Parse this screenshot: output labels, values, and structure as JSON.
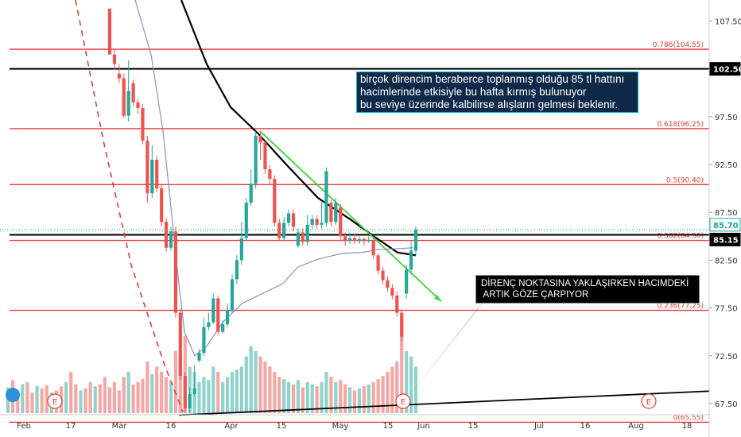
{
  "chart_data": {
    "type": "candlestick",
    "title": "",
    "x_tick_labels": [
      "Feb",
      "17",
      "Mar",
      "16",
      "Apr",
      "15",
      "May",
      "15",
      "Jun",
      "15",
      "Jul",
      "16",
      "Aug",
      "18"
    ],
    "y_tick_labels": [
      "107.50",
      "102.50",
      "97.50",
      "92.50",
      "87.50",
      "82.50",
      "77.50",
      "72.50",
      "67.50"
    ],
    "ylim": [
      66.5,
      109.7
    ],
    "grid": false,
    "price_labels": [
      {
        "text": "102.50",
        "value": 102.5,
        "bg": "#000000",
        "fg": "#ffffff"
      },
      {
        "text": "85.70",
        "value": 85.7,
        "bg": "#ffffff",
        "fg": "#26a69a",
        "border": "#26a69a"
      },
      {
        "text": "85.15",
        "value": 85.15,
        "bg": "#000000",
        "fg": "#ffffff"
      }
    ],
    "horizontal_levels": [
      {
        "label": "0.786(104.55)",
        "value": 104.55,
        "color": "#e53935"
      },
      {
        "label": "",
        "value": 102.5,
        "color": "#000000"
      },
      {
        "label": "0.618(96.25)",
        "value": 96.25,
        "color": "#e53935"
      },
      {
        "label": "0.5(90.40)",
        "value": 90.4,
        "color": "#e53935"
      },
      {
        "label": "0.382(84.56)",
        "value": 84.56,
        "color": "#e53935"
      },
      {
        "label": "",
        "value": 85.15,
        "color": "#000000"
      },
      {
        "label": "0.236(77.25)",
        "value": 77.25,
        "color": "#e53935"
      },
      {
        "label": "0(65.55)",
        "value": 65.55,
        "color": "#e53935"
      }
    ],
    "colors": {
      "up": "#26a69a",
      "down": "#ef5350",
      "up_volume": "#8fd3cc",
      "down_volume": "#f4a7a5",
      "fib": "#e53935",
      "trend": "#3cd43c",
      "ma_fast": "#000000",
      "ma_slow": "#8b8fc8"
    },
    "candles": [
      {
        "o": 108.8,
        "c": 104.0,
        "h": 108.8,
        "l": 104.0
      },
      {
        "o": 104.0,
        "c": 103.0,
        "h": 104.5,
        "l": 102.4
      },
      {
        "o": 102.0,
        "c": 101.5,
        "h": 103.0,
        "l": 101.0
      },
      {
        "o": 101.5,
        "c": 97.6,
        "h": 102.0,
        "l": 97.4
      },
      {
        "o": 97.6,
        "c": 100.2,
        "h": 103.4,
        "l": 97.0
      },
      {
        "o": 101.0,
        "c": 99.0,
        "h": 101.4,
        "l": 98.6
      },
      {
        "o": 99.0,
        "c": 98.4,
        "h": 99.4,
        "l": 97.8
      },
      {
        "o": 98.4,
        "c": 95.0,
        "h": 98.8,
        "l": 94.6
      },
      {
        "o": 95.0,
        "c": 89.5,
        "h": 95.5,
        "l": 88.5
      },
      {
        "o": 89.5,
        "c": 93.0,
        "h": 94.5,
        "l": 89.0
      },
      {
        "o": 93.0,
        "c": 90.0,
        "h": 93.4,
        "l": 89.6
      },
      {
        "o": 90.0,
        "c": 86.5,
        "h": 90.4,
        "l": 86.0
      },
      {
        "o": 86.5,
        "c": 83.8,
        "h": 86.9,
        "l": 83.4
      },
      {
        "o": 83.8,
        "c": 85.5,
        "h": 86.0,
        "l": 83.5
      },
      {
        "o": 85.5,
        "c": 77.0,
        "h": 86.0,
        "l": 76.5
      },
      {
        "o": 77.0,
        "c": 70.4,
        "h": 77.4,
        "l": 70.0
      },
      {
        "o": 70.4,
        "c": 67.0,
        "h": 70.8,
        "l": 66.6
      },
      {
        "o": 67.0,
        "c": 68.5,
        "h": 69.2,
        "l": 66.6
      },
      {
        "o": 68.5,
        "c": 69.1,
        "h": 71.5,
        "l": 68.3
      },
      {
        "o": 72.0,
        "c": 72.8,
        "h": 73.2,
        "l": 71.8
      },
      {
        "o": 72.8,
        "c": 75.5,
        "h": 76.5,
        "l": 72.5
      },
      {
        "o": 75.5,
        "c": 76.0,
        "h": 77.0,
        "l": 75.2
      },
      {
        "o": 76.0,
        "c": 78.5,
        "h": 79.0,
        "l": 75.8
      },
      {
        "o": 78.5,
        "c": 75.0,
        "h": 78.8,
        "l": 74.6
      },
      {
        "o": 75.0,
        "c": 75.8,
        "h": 76.2,
        "l": 74.8
      },
      {
        "o": 75.8,
        "c": 77.3,
        "h": 78.0,
        "l": 75.5
      },
      {
        "o": 77.3,
        "c": 80.5,
        "h": 81.0,
        "l": 77.0
      },
      {
        "o": 80.5,
        "c": 82.5,
        "h": 83.0,
        "l": 80.0
      },
      {
        "o": 82.5,
        "c": 84.8,
        "h": 86.5,
        "l": 82.0
      },
      {
        "o": 84.8,
        "c": 88.5,
        "h": 89.0,
        "l": 84.5
      },
      {
        "o": 88.5,
        "c": 90.5,
        "h": 92.0,
        "l": 88.2
      },
      {
        "o": 90.5,
        "c": 95.5,
        "h": 96.0,
        "l": 90.0
      },
      {
        "o": 95.5,
        "c": 94.8,
        "h": 95.8,
        "l": 93.0
      },
      {
        "o": 94.8,
        "c": 92.0,
        "h": 95.0,
        "l": 91.5
      },
      {
        "o": 92.0,
        "c": 91.0,
        "h": 92.5,
        "l": 90.5
      },
      {
        "o": 91.0,
        "c": 86.4,
        "h": 91.4,
        "l": 86.0
      },
      {
        "o": 86.4,
        "c": 84.8,
        "h": 86.8,
        "l": 84.5
      },
      {
        "o": 84.8,
        "c": 86.4,
        "h": 87.0,
        "l": 84.5
      },
      {
        "o": 86.4,
        "c": 87.4,
        "h": 87.8,
        "l": 86.0
      },
      {
        "o": 87.4,
        "c": 86.0,
        "h": 87.8,
        "l": 85.5
      },
      {
        "o": 84.0,
        "c": 85.4,
        "h": 85.8,
        "l": 83.8
      },
      {
        "o": 85.4,
        "c": 84.4,
        "h": 85.8,
        "l": 84.0
      },
      {
        "o": 84.4,
        "c": 86.2,
        "h": 87.2,
        "l": 84.0
      },
      {
        "o": 86.2,
        "c": 86.8,
        "h": 87.2,
        "l": 85.8
      },
      {
        "o": 86.8,
        "c": 86.2,
        "h": 87.2,
        "l": 85.8
      },
      {
        "o": 86.2,
        "c": 86.4,
        "h": 88.6,
        "l": 85.8
      },
      {
        "o": 86.4,
        "c": 91.8,
        "h": 92.2,
        "l": 86.0
      },
      {
        "o": 88.5,
        "c": 86.5,
        "h": 88.8,
        "l": 86.0
      },
      {
        "o": 86.5,
        "c": 88.5,
        "h": 89.0,
        "l": 86.2
      },
      {
        "o": 88.0,
        "c": 85.0,
        "h": 88.4,
        "l": 84.6
      },
      {
        "o": 85.0,
        "c": 84.5,
        "h": 85.4,
        "l": 84.0
      },
      {
        "o": 84.5,
        "c": 84.8,
        "h": 85.4,
        "l": 84.2
      },
      {
        "o": 84.8,
        "c": 84.5,
        "h": 85.2,
        "l": 84.2
      },
      {
        "o": 84.5,
        "c": 84.7,
        "h": 85.0,
        "l": 84.2
      },
      {
        "o": 84.7,
        "c": 84.5,
        "h": 84.9,
        "l": 84.0
      },
      {
        "o": 84.5,
        "c": 84.6,
        "h": 85.0,
        "l": 84.3
      },
      {
        "o": 84.6,
        "c": 83.0,
        "h": 84.8,
        "l": 82.6
      },
      {
        "o": 83.0,
        "c": 81.4,
        "h": 83.2,
        "l": 81.0
      },
      {
        "o": 81.4,
        "c": 80.4,
        "h": 81.8,
        "l": 80.0
      },
      {
        "o": 80.4,
        "c": 79.6,
        "h": 80.8,
        "l": 79.2
      },
      {
        "o": 79.6,
        "c": 78.8,
        "h": 80.0,
        "l": 78.4
      },
      {
        "o": 78.8,
        "c": 77.0,
        "h": 79.2,
        "l": 76.6
      },
      {
        "o": 77.0,
        "c": 74.5,
        "h": 77.2,
        "l": 74.0
      },
      {
        "o": 79.0,
        "c": 81.5,
        "h": 82.0,
        "l": 78.5
      },
      {
        "o": 81.5,
        "c": 83.5,
        "h": 84.5,
        "l": 81.0
      },
      {
        "o": 83.5,
        "c": 85.7,
        "h": 86.0,
        "l": 83.0
      }
    ],
    "volume_rel": [
      0.25,
      0.3,
      0.22,
      0.35,
      0.4,
      0.28,
      0.3,
      0.33,
      0.5,
      0.38,
      0.45,
      0.4,
      0.35,
      0.3,
      0.6,
      0.55,
      0.75,
      0.45,
      0.4,
      0.3,
      0.35,
      0.32,
      0.45,
      0.4,
      0.3,
      0.35,
      0.4,
      0.42,
      0.45,
      0.55,
      0.65,
      0.6,
      0.55,
      0.5,
      0.45,
      0.4,
      0.35,
      0.33,
      0.3,
      0.28,
      0.32,
      0.25,
      0.3,
      0.28,
      0.26,
      0.3,
      0.4,
      0.35,
      0.3,
      0.32,
      0.28,
      0.25,
      0.22,
      0.24,
      0.26,
      0.28,
      0.3,
      0.33,
      0.36,
      0.4,
      0.45,
      0.5,
      0.95,
      0.6,
      0.55,
      0.45
    ],
    "annotations": [
      {
        "name": "note-resistance-85",
        "lines": [
          "birçok direncim beraberce toplanmış olduğu 85 tl hattını",
          "hacimlerinde etkisiyle bu hafta kırmış bulunuyor",
          "bu seviye üzerinde kalbilirse alışların gelmesi beklenir."
        ]
      },
      {
        "name": "note-volume",
        "lines": [
          "DİRENÇ NOKTASINA YAKLAŞIRKEN HACIMDEKİ",
          " ARTIK GÖZE ÇARPIYOR"
        ]
      }
    ],
    "event_markers": [
      "E",
      "E",
      "E"
    ]
  }
}
